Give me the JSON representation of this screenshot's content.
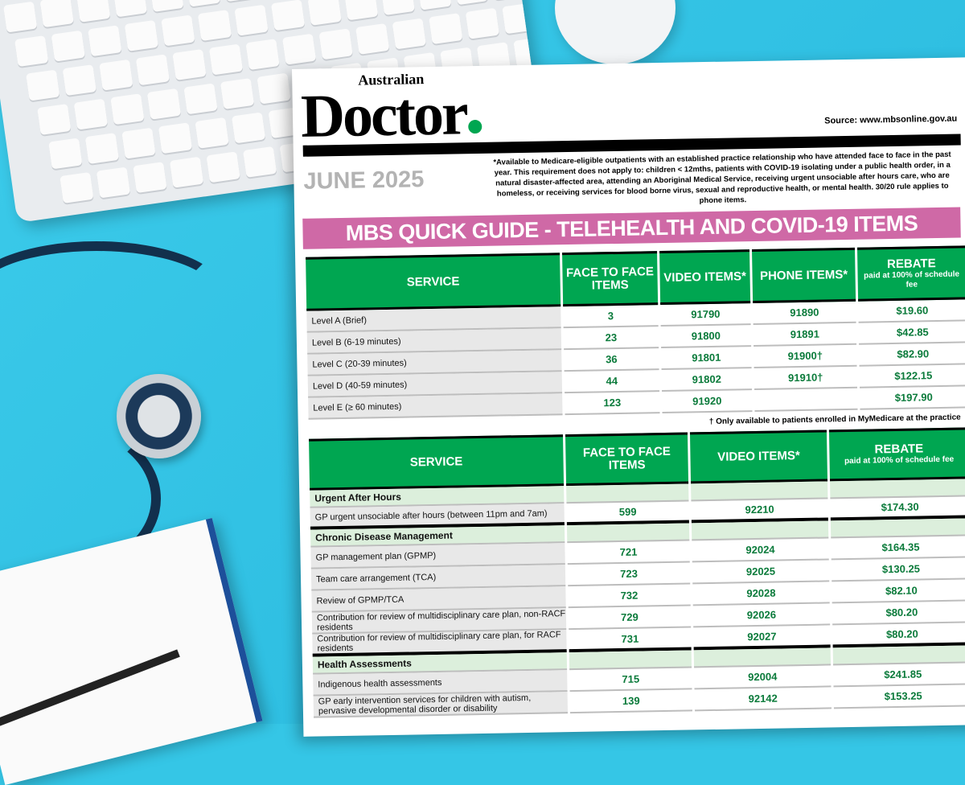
{
  "brand": {
    "small": "Australian",
    "name": "Doctor",
    "accent": "#00a651"
  },
  "source": "Source: www.mbsonline.gov.au",
  "date": "JUNE 2025",
  "disclaimer": "*Available to Medicare-eligible outpatients with an established practice relationship who have attended face to face in the past year. This requirement does not apply to: children < 12mths, patients with COVID-19 isolating under a public health order, in a natural disaster-affected area, attending an Aboriginal Medical Service, receiving urgent unsociable after hours care, who are homeless, or receiving services for blood borne virus, sexual and reproductive health, or mental health. 30/20 rule applies to phone items.",
  "title": "MBS QUICK GUIDE - TELEHEALTH AND COVID-19 ITEMS",
  "table1": {
    "headers": [
      "SERVICE",
      "FACE TO FACE ITEMS",
      "VIDEO ITEMS*",
      "PHONE ITEMS*",
      "REBATE"
    ],
    "rebate_sub": "paid at 100% of schedule fee",
    "rows": [
      [
        "Level A (Brief)",
        "3",
        "91790",
        "91890",
        "$19.60"
      ],
      [
        "Level B (6-19 minutes)",
        "23",
        "91800",
        "91891",
        "$42.85"
      ],
      [
        "Level C (20-39 minutes)",
        "36",
        "91801",
        "91900†",
        "$82.90"
      ],
      [
        "Level D (40-59 minutes)",
        "44",
        "91802",
        "91910†",
        "$122.15"
      ],
      [
        "Level E (≥ 60 minutes)",
        "123",
        "91920",
        "",
        "$197.90"
      ]
    ]
  },
  "footnote": "† Only available to patients enrolled in MyMedicare at the practice",
  "table2": {
    "headers": [
      "SERVICE",
      "FACE TO FACE ITEMS",
      "VIDEO ITEMS*",
      "REBATE"
    ],
    "rebate_sub": "paid at 100% of schedule fee",
    "rows": [
      {
        "section": "Urgent After Hours"
      },
      [
        "GP urgent unsociable after hours (between 11pm and 7am)",
        "599",
        "92210",
        "$174.30"
      ],
      {
        "section": "Chronic Disease Management"
      },
      [
        "GP management plan (GPMP)",
        "721",
        "92024",
        "$164.35"
      ],
      [
        "Team care arrangement (TCA)",
        "723",
        "92025",
        "$130.25"
      ],
      [
        "Review of GPMP/TCA",
        "732",
        "92028",
        "$82.10"
      ],
      [
        "Contribution for review of multidisciplinary care plan, non-RACF residents",
        "729",
        "92026",
        "$80.20"
      ],
      [
        "Contribution for review of multidisciplinary care plan, for RACF residents",
        "731",
        "92027",
        "$80.20"
      ],
      {
        "section": "Health Assessments"
      },
      [
        "Indigenous health assessments",
        "715",
        "92004",
        "$241.85"
      ],
      [
        "GP early intervention services for children with autism, pervasive developmental disorder or disability",
        "139",
        "92142",
        "$153.25"
      ]
    ]
  }
}
